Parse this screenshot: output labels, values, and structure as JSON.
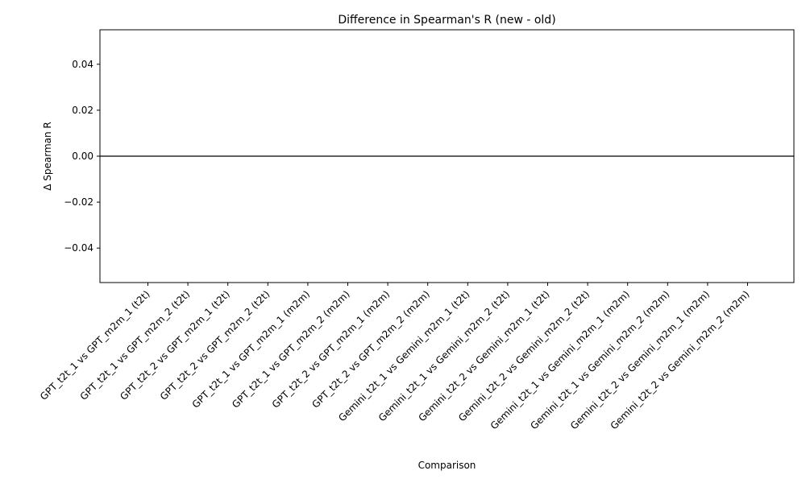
{
  "chart_data": {
    "type": "bar",
    "title": "Difference in Spearman's R (new - old)",
    "xlabel": "Comparison",
    "ylabel": "Δ Spearman R",
    "categories": [
      "GPT_t2t_1 vs GPT_m2m_1 (t2t)",
      "GPT_t2t_1 vs GPT_m2m_2 (t2t)",
      "GPT_t2t_2 vs GPT_m2m_1 (t2t)",
      "GPT_t2t_2 vs GPT_m2m_2 (t2t)",
      "GPT_t2t_1 vs GPT_m2m_1 (m2m)",
      "GPT_t2t_1 vs GPT_m2m_2 (m2m)",
      "GPT_t2t_2 vs GPT_m2m_1 (m2m)",
      "GPT_t2t_2 vs GPT_m2m_2 (m2m)",
      "Gemini_t2t_1 vs Gemini_m2m_1 (t2t)",
      "Gemini_t2t_1 vs Gemini_m2m_2 (t2t)",
      "Gemini_t2t_2 vs Gemini_m2m_1 (t2t)",
      "Gemini_t2t_2 vs Gemini_m2m_2 (t2t)",
      "Gemini_t2t_1 vs Gemini_m2m_1 (m2m)",
      "Gemini_t2t_1 vs Gemini_m2m_2 (m2m)",
      "Gemini_t2t_2 vs Gemini_m2m_1 (m2m)",
      "Gemini_t2t_2 vs Gemini_m2m_2 (m2m)"
    ],
    "values": [
      0,
      0,
      0,
      0,
      0,
      0,
      0,
      0,
      0,
      0,
      0,
      0,
      0,
      0,
      0,
      0
    ],
    "ylim": [
      -0.055,
      0.055
    ],
    "yticks": [
      -0.04,
      -0.02,
      0.0,
      0.02,
      0.04
    ],
    "ytick_labels": [
      "−0.04",
      "−0.02",
      "0.00",
      "0.02",
      "0.04"
    ],
    "hline": 0,
    "grid": false,
    "colors": {
      "bar": "#1f77b4",
      "axis": "#000000",
      "background": "#ffffff"
    }
  }
}
